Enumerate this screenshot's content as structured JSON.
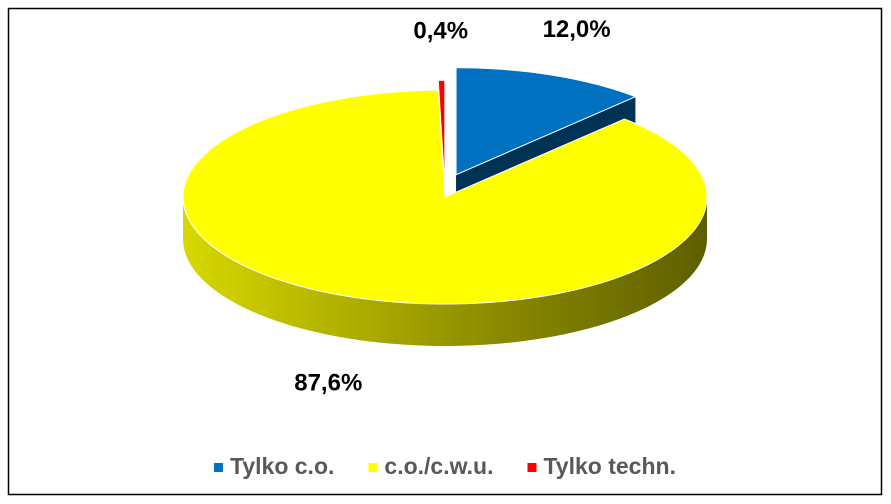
{
  "chart_data": {
    "type": "pie",
    "legend": "bottom",
    "three_d": true,
    "categories": [
      "Tylko c.o.",
      "c.o./c.w.u.",
      "Tylko techn."
    ],
    "values": [
      12.0,
      87.6,
      0.4
    ],
    "value_labels": [
      "12,0%",
      "87,6%",
      "0,4%"
    ],
    "colors": [
      "#0070c0",
      "#ffff00",
      "#ff0000"
    ]
  }
}
